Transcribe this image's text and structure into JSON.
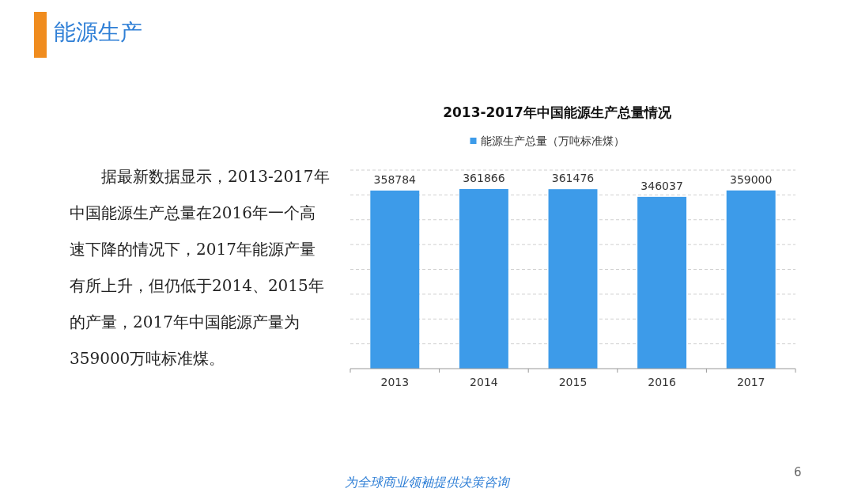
{
  "chart_data": {
    "type": "bar",
    "title": "2013-2017年中国能源生产总量情况",
    "categories": [
      "2013",
      "2014",
      "2015",
      "2016",
      "2017"
    ],
    "series": [
      {
        "name": "能源生产总量（万吨标准煤）",
        "color": "#3d9be9",
        "values": [
          358784,
          361866,
          361476,
          346037,
          359000
        ]
      }
    ],
    "ylim": [
      0,
      400000
    ],
    "yticks": [
      {
        "value": 0,
        "label": null
      },
      {
        "value": 50000,
        "label": null
      },
      {
        "value": 100000,
        "label": null
      },
      {
        "value": 150000,
        "label": null
      },
      {
        "value": 200000,
        "label": null
      },
      {
        "value": 250000,
        "label": null
      },
      {
        "value": 300000,
        "label": null
      },
      {
        "value": 350000,
        "label": null
      },
      {
        "value": 400000,
        "label": null
      }
    ],
    "grid": "y",
    "legend": "top",
    "data_labels": true,
    "tick_labels": "x",
    "annotations": [
      "能源生产",
      "据最新数据显示，2013-2017年中国能源生产总量在2016年一个高速下降的情况下，2017年能源产量有所上升，但仍低于2014、2015年的产量，2017年中国能源产量为359000万吨标准煤。",
      "为全球商业领袖提供决策咨询",
      "6"
    ]
  }
}
